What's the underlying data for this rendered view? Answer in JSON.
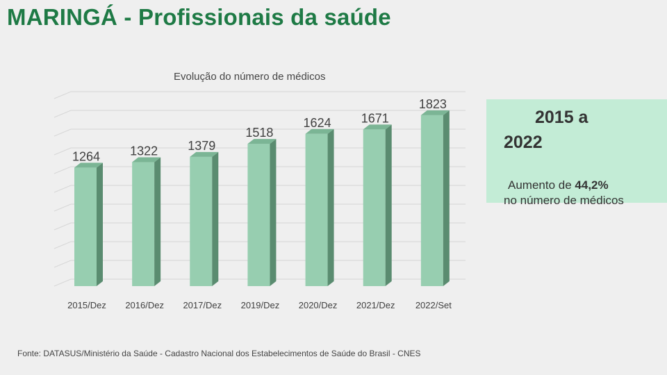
{
  "slide_title": "MARINGÁ - Profissionais da saúde",
  "chart_data": {
    "type": "bar",
    "title": "Evolução do número de médicos",
    "categories": [
      "2015/Dez",
      "2016/Dez",
      "2017/Dez",
      "2019/Dez",
      "2020/Dez",
      "2021/Dez",
      "2022/Set"
    ],
    "values": [
      1264,
      1322,
      1379,
      1518,
      1624,
      1671,
      1823
    ],
    "ylim": [
      0,
      2000
    ],
    "grid": true,
    "bar_front_color": "#97ceb0",
    "bar_side_color": "#5a8c70",
    "bar_top_color": "#7bb595"
  },
  "highlight": {
    "period_line1": "2015 a",
    "period_line2": "2022",
    "desc_prefix": "Aumento de",
    "pct": "44,2%",
    "desc_suffix": "no   número de médicos",
    "box_color": "#c3ecd6"
  },
  "source": "Fonte:  DATASUS/Ministério da Saúde - Cadastro Nacional dos Estabelecimentos de Saúde do Brasil - CNES",
  "colors": {
    "title": "#1e7a45",
    "background": "#efefef"
  }
}
